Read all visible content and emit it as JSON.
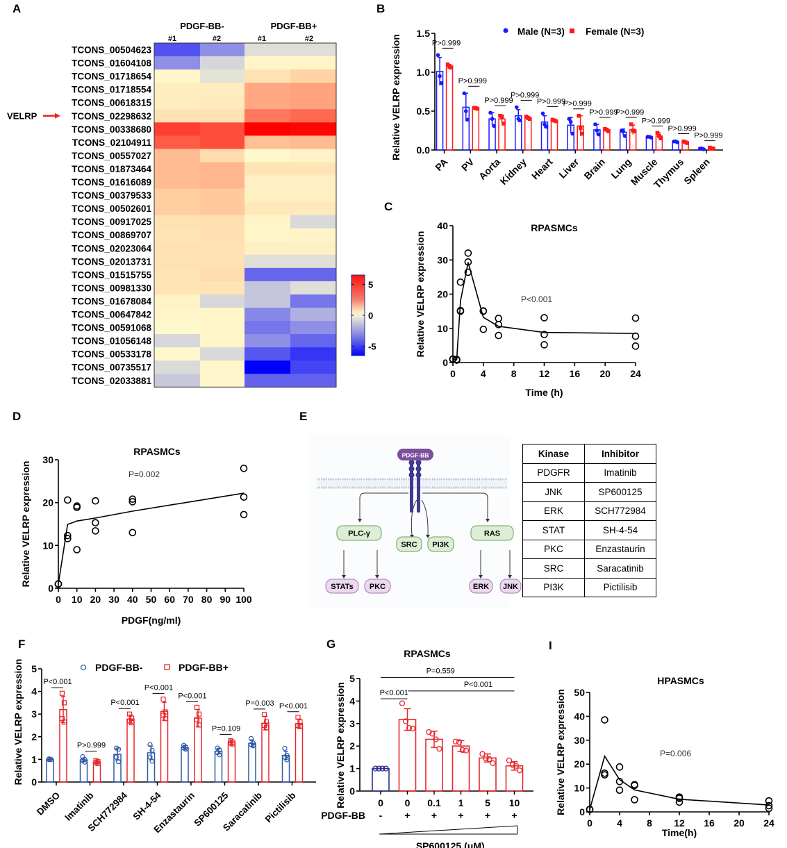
{
  "panels": {
    "A": "A",
    "B": "B",
    "C": "C",
    "D": "D",
    "E": "E",
    "F": "F",
    "G": "G",
    "I": "I"
  },
  "heatmap": {
    "group_labels": [
      "PDGF-BB-",
      "PDGF-BB+"
    ],
    "sample_labels": [
      "#1",
      "#2",
      "#1",
      "#2"
    ],
    "highlight_label": "VELRP",
    "highlight_row": "TCONS_02298632",
    "colorbar": {
      "ticks": [
        5,
        0,
        -5
      ],
      "range": [
        -6.5,
        6.5
      ]
    },
    "rows": [
      {
        "id": "TCONS_00504623",
        "values": [
          -4.5,
          -3.0,
          -0.6,
          -0.6
        ]
      },
      {
        "id": "TCONS_01604108",
        "values": [
          -3.0,
          -1.2,
          0.2,
          0.2
        ]
      },
      {
        "id": "TCONS_01718654",
        "values": [
          0.1,
          -0.3,
          1.4,
          2.1
        ]
      },
      {
        "id": "TCONS_01718554",
        "values": [
          0.8,
          0.8,
          3.0,
          3.1
        ]
      },
      {
        "id": "TCONS_00618315",
        "values": [
          0.8,
          0.9,
          3.0,
          3.1
        ]
      },
      {
        "id": "TCONS_02298632",
        "values": [
          1.4,
          1.4,
          4.0,
          4.3
        ]
      },
      {
        "id": "TCONS_00338680",
        "values": [
          5.2,
          4.9,
          6.5,
          6.4
        ]
      },
      {
        "id": "TCONS_02104911",
        "values": [
          4.6,
          4.9,
          2.5,
          2.6
        ]
      },
      {
        "id": "TCONS_00557027",
        "values": [
          2.6,
          1.8,
          0.0,
          0.4
        ]
      },
      {
        "id": "TCONS_01873464",
        "values": [
          2.6,
          2.7,
          1.3,
          1.3
        ]
      },
      {
        "id": "TCONS_01616089",
        "values": [
          2.6,
          2.7,
          0.6,
          0.6
        ]
      },
      {
        "id": "TCONS_00379533",
        "values": [
          2.2,
          2.3,
          0.5,
          0.6
        ]
      },
      {
        "id": "TCONS_00502601",
        "values": [
          2.2,
          2.3,
          1.0,
          1.0
        ]
      },
      {
        "id": "TCONS_00917025",
        "values": [
          1.5,
          1.6,
          0.3,
          -1.0
        ]
      },
      {
        "id": "TCONS_00869707",
        "values": [
          1.3,
          1.6,
          0.2,
          0.3
        ]
      },
      {
        "id": "TCONS_02023064",
        "values": [
          1.4,
          1.5,
          0.5,
          0.5
        ]
      },
      {
        "id": "TCONS_02013731",
        "values": [
          1.4,
          1.5,
          -0.6,
          -0.6
        ]
      },
      {
        "id": "TCONS_01515755",
        "values": [
          1.3,
          1.8,
          -4.0,
          -4.0
        ]
      },
      {
        "id": "TCONS_00981330",
        "values": [
          1.3,
          1.3,
          -1.7,
          -0.6
        ]
      },
      {
        "id": "TCONS_01678084",
        "values": [
          0.4,
          -1.1,
          -1.7,
          -3.6
        ]
      },
      {
        "id": "TCONS_00647842",
        "values": [
          0.2,
          0.2,
          -3.2,
          -2.2
        ]
      },
      {
        "id": "TCONS_00591068",
        "values": [
          0.0,
          0.2,
          -3.6,
          -3.0
        ]
      },
      {
        "id": "TCONS_01056148",
        "values": [
          -1.1,
          0.2,
          -3.0,
          -4.0
        ]
      },
      {
        "id": "TCONS_00533178",
        "values": [
          0.0,
          -1.0,
          -4.4,
          -5.2
        ]
      },
      {
        "id": "TCONS_00735517",
        "values": [
          -0.9,
          0.2,
          -6.5,
          -4.8
        ]
      },
      {
        "id": "TCONS_02033881",
        "values": [
          -1.6,
          0.1,
          -4.1,
          -4.1
        ]
      }
    ]
  },
  "pathway": {
    "ligand": "PDGF-BB",
    "level1": [
      "PLC-γ",
      "SRC",
      "PI3K",
      "RAS"
    ],
    "level2": [
      "STATs",
      "PKC",
      "ERK",
      "JNK"
    ],
    "table": {
      "headers": [
        "Kinase",
        "Inhibitor"
      ],
      "rows": [
        [
          "PDGFR",
          "Imatinib"
        ],
        [
          "JNK",
          "SP600125"
        ],
        [
          "ERK",
          "SCH772984"
        ],
        [
          "STAT",
          "SH-4-54"
        ],
        [
          "PKC",
          "Enzastaurin"
        ],
        [
          "SRC",
          "Saracatinib"
        ],
        [
          "PI3K",
          "Pictilisib"
        ]
      ]
    },
    "colors": {
      "ligand": "#7d4d9e",
      "receptor": "#3f3a8f",
      "green_fill": "#dcefd6",
      "green_border": "#6aa15a",
      "purple_fill": "#ecd8ef",
      "purple_border": "#a678b3"
    }
  },
  "chart_data": [
    {
      "id": "B",
      "type": "bar",
      "title": "",
      "ylabel": "Relative VELRP expression",
      "xlabel": "",
      "ylim": [
        0,
        1.5
      ],
      "yticks": [
        0.0,
        0.5,
        1.0,
        1.5
      ],
      "ytick_labels": [
        "0.0",
        "0.5",
        "1.0",
        "1.5"
      ],
      "categories": [
        "PA",
        "PV",
        "Aorta",
        "Kidney",
        "Heart",
        "Liver",
        "Brain",
        "Lung",
        "Muscle",
        "Thymus",
        "Spleen"
      ],
      "legend": {
        "position": "top",
        "entries": [
          "Male (N=3)",
          "Female (N=3)"
        ]
      },
      "series": [
        {
          "name": "Male (N=3)",
          "color": "#1a1aff",
          "marker": "circle-filled",
          "values": [
            1.01,
            0.55,
            0.4,
            0.44,
            0.36,
            0.32,
            0.26,
            0.23,
            0.17,
            0.11,
            0.02
          ],
          "sd": [
            0.18,
            0.18,
            0.08,
            0.08,
            0.08,
            0.1,
            0.07,
            0.04,
            0.01,
            0.01,
            0.01
          ],
          "points": [
            [
              1.22,
              0.95,
              0.86
            ],
            [
              0.73,
              0.5,
              0.39
            ],
            [
              0.48,
              0.4,
              0.31
            ],
            [
              0.55,
              0.4,
              0.38
            ],
            [
              0.47,
              0.33,
              0.3
            ],
            [
              0.4,
              0.36,
              0.21
            ],
            [
              0.33,
              0.25,
              0.2
            ],
            [
              0.25,
              0.24,
              0.18
            ],
            [
              0.17,
              0.17,
              0.16
            ],
            [
              0.11,
              0.11,
              0.1
            ],
            [
              0.02,
              0.02,
              0.01
            ]
          ]
        },
        {
          "name": "Female (N=3)",
          "color": "#ff1a1a",
          "marker": "square-filled",
          "values": [
            1.08,
            0.54,
            0.4,
            0.41,
            0.38,
            0.31,
            0.26,
            0.26,
            0.18,
            0.1,
            0.02
          ],
          "sd": [
            0.02,
            0.01,
            0.05,
            0.02,
            0.01,
            0.13,
            0.02,
            0.06,
            0.04,
            0.01,
            0.01
          ],
          "points": [
            [
              1.1,
              1.07,
              1.06
            ],
            [
              0.54,
              0.54,
              0.53
            ],
            [
              0.44,
              0.43,
              0.34
            ],
            [
              0.43,
              0.41,
              0.4
            ],
            [
              0.39,
              0.38,
              0.37
            ],
            [
              0.44,
              0.28,
              0.21
            ],
            [
              0.27,
              0.26,
              0.24
            ],
            [
              0.33,
              0.25,
              0.24
            ],
            [
              0.22,
              0.18,
              0.15
            ],
            [
              0.11,
              0.1,
              0.09
            ],
            [
              0.03,
              0.02,
              0.02
            ]
          ]
        }
      ],
      "annotations": [
        "P>0.999",
        "P>0.999",
        "P>0.999",
        "P>0.999",
        "P>0.999",
        "P>0.999",
        "P>0.999",
        "P>0.999",
        "P>0.999",
        "P>0.999",
        "P>0.999"
      ]
    },
    {
      "id": "C",
      "type": "scatter",
      "title": "RPASMCs",
      "xlabel": "Time (h)",
      "ylabel": "Relative VELRP expression",
      "xlim": [
        0,
        24
      ],
      "ylim": [
        0,
        40
      ],
      "xticks": [
        0,
        4,
        8,
        12,
        16,
        20,
        24
      ],
      "yticks": [
        0,
        10,
        20,
        30,
        40
      ],
      "annotation": "P<0.001",
      "points": [
        [
          0,
          1
        ],
        [
          0,
          1
        ],
        [
          0,
          1
        ],
        [
          0.5,
          0.8
        ],
        [
          0.5,
          0.9
        ],
        [
          0.5,
          0.7
        ],
        [
          1,
          23.5
        ],
        [
          1,
          15
        ],
        [
          1,
          15.2
        ],
        [
          2,
          32
        ],
        [
          2,
          29.4
        ],
        [
          2,
          26.4
        ],
        [
          4,
          15
        ],
        [
          4,
          15.1
        ],
        [
          4,
          9.7
        ],
        [
          6,
          12.9
        ],
        [
          6,
          11.1
        ],
        [
          6,
          7.9
        ],
        [
          12,
          13.1
        ],
        [
          12,
          8.2
        ],
        [
          12,
          5.2
        ],
        [
          24,
          13
        ],
        [
          24,
          7.7
        ],
        [
          24,
          4.8
        ]
      ],
      "line": [
        [
          0,
          1
        ],
        [
          0.5,
          0.8
        ],
        [
          1,
          18
        ],
        [
          2,
          29.3
        ],
        [
          4,
          13.2
        ],
        [
          6,
          10.6
        ],
        [
          12,
          8.8
        ],
        [
          24,
          8.5
        ]
      ]
    },
    {
      "id": "D",
      "type": "scatter",
      "title": "RPASMCs",
      "xlabel": "PDGF(ng/ml)",
      "ylabel": "Relative VELRP expression",
      "xlim": [
        0,
        100
      ],
      "ylim": [
        0,
        30
      ],
      "xticks": [
        0,
        10,
        20,
        30,
        40,
        50,
        60,
        70,
        80,
        90,
        100
      ],
      "yticks": [
        0,
        10,
        20,
        30
      ],
      "annotation": "P=0.002",
      "points": [
        [
          0,
          1
        ],
        [
          0,
          1
        ],
        [
          0,
          1
        ],
        [
          5,
          20.6
        ],
        [
          5,
          12.3
        ],
        [
          5,
          11.6
        ],
        [
          10,
          19.2
        ],
        [
          10,
          18.9
        ],
        [
          10,
          9
        ],
        [
          20,
          20.4
        ],
        [
          20,
          15.3
        ],
        [
          20,
          13.4
        ],
        [
          40,
          20.8
        ],
        [
          40,
          20.2
        ],
        [
          40,
          13
        ],
        [
          100,
          28
        ],
        [
          100,
          21.3
        ],
        [
          100,
          17.2
        ]
      ],
      "line": [
        [
          0,
          1
        ],
        [
          5,
          14.9
        ],
        [
          10,
          15.7
        ],
        [
          20,
          16.4
        ],
        [
          40,
          18
        ],
        [
          100,
          22.2
        ]
      ]
    },
    {
      "id": "F",
      "type": "bar",
      "title": "",
      "ylabel": "Relative VELRP expression",
      "xlabel": "",
      "ylim": [
        0,
        5
      ],
      "yticks": [
        0,
        1,
        2,
        3,
        4,
        5
      ],
      "categories": [
        "DMSO",
        "Imatinib",
        "SCH772984",
        "SH-4-54",
        "Enzastaurin",
        "SP600125",
        "Saracatinib",
        "Pictilisib"
      ],
      "legend": {
        "position": "top",
        "entries": [
          "PDGF-BB-",
          "PDGF-BB+"
        ]
      },
      "series": [
        {
          "name": "PDGF-BB-",
          "color": "#2f5aa6",
          "marker": "circle-open",
          "values": [
            1.0,
            0.98,
            1.22,
            1.29,
            1.52,
            1.36,
            1.71,
            1.17
          ],
          "sd": [
            0.02,
            0.08,
            0.25,
            0.3,
            0.1,
            0.12,
            0.15,
            0.18
          ],
          "points": [
            [
              1.02,
              1.0,
              0.99,
              0.99
            ],
            [
              1.12,
              1.0,
              0.95,
              0.88
            ],
            [
              1.5,
              1.45,
              1.1,
              0.9
            ],
            [
              1.65,
              1.4,
              1.1,
              0.92
            ],
            [
              1.62,
              1.55,
              1.5,
              1.45
            ],
            [
              1.5,
              1.42,
              1.3,
              1.2
            ],
            [
              1.92,
              1.72,
              1.65,
              1.6
            ],
            [
              1.49,
              1.18,
              1.1,
              0.98
            ]
          ]
        },
        {
          "name": "PDGF-BB+",
          "color": "#e8262b",
          "marker": "square-open",
          "values": [
            3.2,
            0.88,
            2.78,
            3.12,
            2.82,
            1.76,
            2.6,
            2.58
          ],
          "sd": [
            0.58,
            0.06,
            0.18,
            0.4,
            0.38,
            0.1,
            0.3,
            0.2
          ],
          "points": [
            [
              3.92,
              3.5,
              2.8,
              2.65
            ],
            [
              0.94,
              0.9,
              0.86,
              0.82
            ],
            [
              3.0,
              2.82,
              2.7,
              2.62
            ],
            [
              3.66,
              3.1,
              2.95,
              2.8
            ],
            [
              3.3,
              3.0,
              2.75,
              2.52
            ],
            [
              1.82,
              1.76,
              1.72,
              1.68
            ],
            [
              2.98,
              2.66,
              2.5,
              2.4
            ],
            [
              2.86,
              2.66,
              2.5,
              2.45
            ]
          ]
        }
      ],
      "annotations": [
        "P<0.001",
        "P>0.999",
        "P<0.001",
        "P<0.001",
        "P<0.001",
        "P=0.109",
        "P=0.003",
        "P<0.001"
      ]
    },
    {
      "id": "G",
      "type": "bar",
      "title": "RPASMCs",
      "ylabel": "Relative VELRP expression",
      "xlabel": "SP600125 (μM)",
      "ylim": [
        0,
        5
      ],
      "yticks": [
        0,
        1,
        2,
        3,
        4,
        5
      ],
      "categories": [
        "0",
        "0",
        "0.1",
        "1",
        "5",
        "10"
      ],
      "pdgf_row_label": "PDGF-BB",
      "pdgf_signs": [
        "-",
        "+",
        "+",
        "+",
        "+",
        "+"
      ],
      "values": [
        1.0,
        3.18,
        2.3,
        2.0,
        1.47,
        1.12
      ],
      "sd": [
        0.0,
        0.48,
        0.36,
        0.24,
        0.18,
        0.19
      ],
      "colors": [
        "#2b2f8f",
        "#e8262b",
        "#e8262b",
        "#e8262b",
        "#e8262b",
        "#e8262b"
      ],
      "points": [
        [
          1,
          1,
          1,
          1
        ],
        [
          3.9,
          3.1,
          2.8,
          2.78
        ],
        [
          2.62,
          2.55,
          2.3,
          1.88
        ],
        [
          2.2,
          2.18,
          1.82,
          1.8
        ],
        [
          1.65,
          1.45,
          1.42,
          1.24
        ],
        [
          1.36,
          1.16,
          1.12,
          0.92
        ]
      ],
      "annotations": [
        {
          "label": "P<0.001",
          "from": 0,
          "to": 1
        },
        {
          "label": "P<0.001",
          "from": 1,
          "to": 5
        },
        {
          "label": "P=0.559",
          "from": 0,
          "to": 5
        }
      ]
    },
    {
      "id": "I",
      "type": "scatter",
      "title": "HPASMCs",
      "xlabel": "Time(h)",
      "ylabel": "Relative VELRP expression",
      "xlim": [
        0,
        24
      ],
      "ylim": [
        0,
        50
      ],
      "xticks": [
        0,
        4,
        8,
        12,
        16,
        20,
        24
      ],
      "yticks": [
        0,
        10,
        20,
        30,
        40,
        50
      ],
      "annotation": "P=0.006",
      "points": [
        [
          0,
          1
        ],
        [
          0,
          1
        ],
        [
          0,
          1
        ],
        [
          2,
          38.5
        ],
        [
          2,
          16.2
        ],
        [
          2,
          15.5
        ],
        [
          4,
          18.8
        ],
        [
          4,
          12.7
        ],
        [
          4,
          9.1
        ],
        [
          6,
          11.4
        ],
        [
          6,
          11.1
        ],
        [
          6,
          5.1
        ],
        [
          12,
          6.2
        ],
        [
          12,
          5.7
        ],
        [
          12,
          4.1
        ],
        [
          24,
          4.6
        ],
        [
          24,
          2.6
        ],
        [
          24,
          1.5
        ]
      ],
      "line": [
        [
          0,
          1
        ],
        [
          2,
          23.3
        ],
        [
          4,
          13.5
        ],
        [
          6,
          9.2
        ],
        [
          12,
          5.3
        ],
        [
          24,
          2.9
        ]
      ]
    }
  ]
}
